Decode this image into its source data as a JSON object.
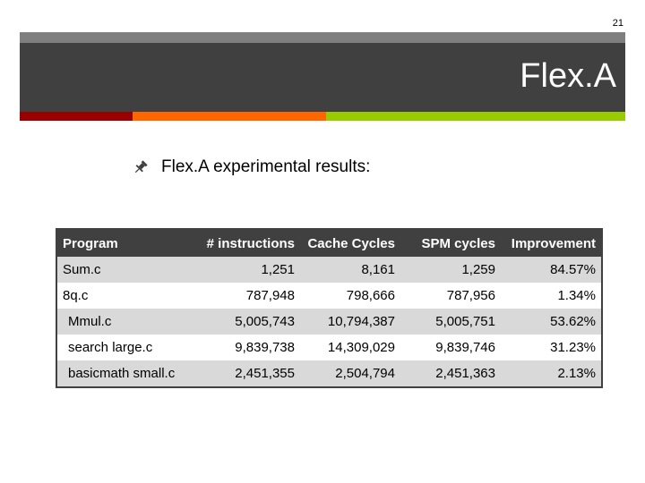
{
  "slide": {
    "number": "21",
    "title": "Flex.A",
    "bullet_text": "Flex.A experimental results:",
    "bullet_icon": "pushpin-icon"
  },
  "colors": {
    "top_bar": "#7f7f7f",
    "title_band": "#404040",
    "accent_red": "#9b0000",
    "accent_orange": "#ff6600",
    "accent_green": "#99cc00",
    "table_header": "#404040",
    "row_shade": "#d9d9d9"
  },
  "table": {
    "headers": [
      "Program",
      "# instructions",
      "Cache Cycles",
      "SPM cycles",
      "Improvement"
    ],
    "rows": [
      {
        "program": "Sum.c",
        "instructions": "1,251",
        "cache": "8,161",
        "spm": "1,259",
        "improvement": "84.57%"
      },
      {
        "program": "8q.c",
        "instructions": "787,948",
        "cache": "798,666",
        "spm": "787,956",
        "improvement": "1.34%"
      },
      {
        "program": "Mmul.c",
        "instructions": "5,005,743",
        "cache": "10,794,387",
        "spm": "5,005,751",
        "improvement": "53.62%"
      },
      {
        "program": "search large.c",
        "instructions": "9,839,738",
        "cache": "14,309,029",
        "spm": "9,839,746",
        "improvement": "31.23%"
      },
      {
        "program": "basicmath small.c",
        "instructions": "2,451,355",
        "cache": "2,504,794",
        "spm": "2,451,363",
        "improvement": "2.13%"
      }
    ]
  }
}
